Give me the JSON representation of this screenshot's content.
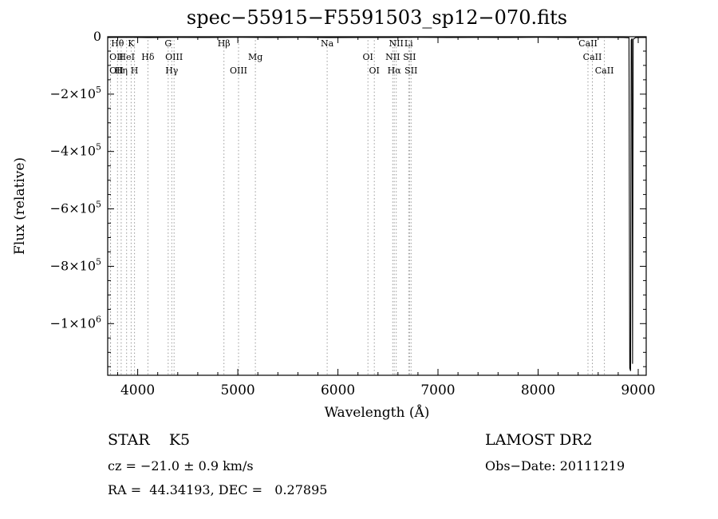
{
  "chart_data": {
    "type": "line",
    "title": "spec−55915−F5591503_sp12−070.fits",
    "xlabel": "Wavelength (Å)",
    "ylabel": "Flux (relative)",
    "xlim": [
      3700,
      9080
    ],
    "ylim": [
      -1180000,
      0
    ],
    "grid": false,
    "line_color": "#000000",
    "ref_line_color": "#999999",
    "xticks": {
      "major": [
        4000,
        5000,
        6000,
        7000,
        8000,
        9000
      ],
      "minor_step": 200
    },
    "yticks": {
      "major": [
        {
          "value": 0,
          "label": "0"
        },
        {
          "value": -200000,
          "label": "−2×10^5"
        },
        {
          "value": -400000,
          "label": "−4×10^5"
        },
        {
          "value": -600000,
          "label": "−6×10^5"
        },
        {
          "value": -800000,
          "label": "−8×10^5"
        },
        {
          "value": -1000000,
          "label": "−1×10^6"
        }
      ],
      "minor_step": 50000
    },
    "spectral_lines": [
      {
        "wavelength": 3727,
        "label": "OII",
        "row": 2
      },
      {
        "wavelength": 3729,
        "label": "OII",
        "row": 3
      },
      {
        "wavelength": 3798,
        "label": "Hθ",
        "row": 1
      },
      {
        "wavelength": 3835,
        "label": "Hη",
        "row": 3
      },
      {
        "wavelength": 3889,
        "label": "HeI",
        "row": 2
      },
      {
        "wavelength": 3934,
        "label": "K",
        "row": 1
      },
      {
        "wavelength": 3968,
        "label": "H",
        "row": 3
      },
      {
        "wavelength": 4102,
        "label": "Hδ",
        "row": 2
      },
      {
        "wavelength": 4304,
        "label": "G",
        "row": 1
      },
      {
        "wavelength": 4340,
        "label": "Hγ",
        "row": 3
      },
      {
        "wavelength": 4363,
        "label": "OIII",
        "row": 2
      },
      {
        "wavelength": 4861,
        "label": "Hβ",
        "row": 1
      },
      {
        "wavelength": 5007,
        "label": "OIII",
        "row": 3
      },
      {
        "wavelength": 5175,
        "label": "Mg",
        "row": 2
      },
      {
        "wavelength": 5893,
        "label": "Na",
        "row": 1
      },
      {
        "wavelength": 6300,
        "label": "OI",
        "row": 2
      },
      {
        "wavelength": 6364,
        "label": "OI",
        "row": 3
      },
      {
        "wavelength": 6548,
        "label": "NII",
        "row": 2
      },
      {
        "wavelength": 6563,
        "label": "Hα",
        "row": 3
      },
      {
        "wavelength": 6583,
        "label": "NII",
        "row": 1
      },
      {
        "wavelength": 6707,
        "label": "Li",
        "row": 1
      },
      {
        "wavelength": 6716,
        "label": "SII",
        "row": 2
      },
      {
        "wavelength": 6731,
        "label": "SII",
        "row": 3
      },
      {
        "wavelength": 8498,
        "label": "CaII",
        "row": 1
      },
      {
        "wavelength": 8542,
        "label": "CaII",
        "row": 2
      },
      {
        "wavelength": 8662,
        "label": "CaII",
        "row": 3
      }
    ],
    "spectrum": [
      [
        3700,
        -2500
      ],
      [
        3900,
        -2000
      ],
      [
        4100,
        -3000
      ],
      [
        4400,
        -2200
      ],
      [
        4700,
        -2800
      ],
      [
        5000,
        -2000
      ],
      [
        5300,
        -2600
      ],
      [
        5600,
        -2200
      ],
      [
        5900,
        -3000
      ],
      [
        6200,
        -2400
      ],
      [
        6500,
        -2800
      ],
      [
        6800,
        -2000
      ],
      [
        7100,
        -2600
      ],
      [
        7400,
        -2200
      ],
      [
        7700,
        -2800
      ],
      [
        8000,
        -2000
      ],
      [
        8300,
        -2600
      ],
      [
        8600,
        -2300
      ],
      [
        8850,
        -2800
      ],
      [
        8908,
        -3500
      ],
      [
        8916,
        -1155000
      ],
      [
        8924,
        -1165000
      ],
      [
        8930,
        -12000
      ],
      [
        8938,
        -6000
      ],
      [
        8944,
        -1140000
      ],
      [
        8950,
        -9000
      ],
      [
        8975,
        -3000
      ],
      [
        9010,
        -2400
      ],
      [
        9080,
        -2600
      ]
    ]
  },
  "footer": {
    "object_type": "STAR    K5",
    "survey": "LAMOST DR2",
    "cz": "cz = −21.0 ± 0.9 km/s",
    "obs_date": "Obs−Date: 20111219",
    "coords": "RA =  44.34193, DEC =   0.27895"
  }
}
